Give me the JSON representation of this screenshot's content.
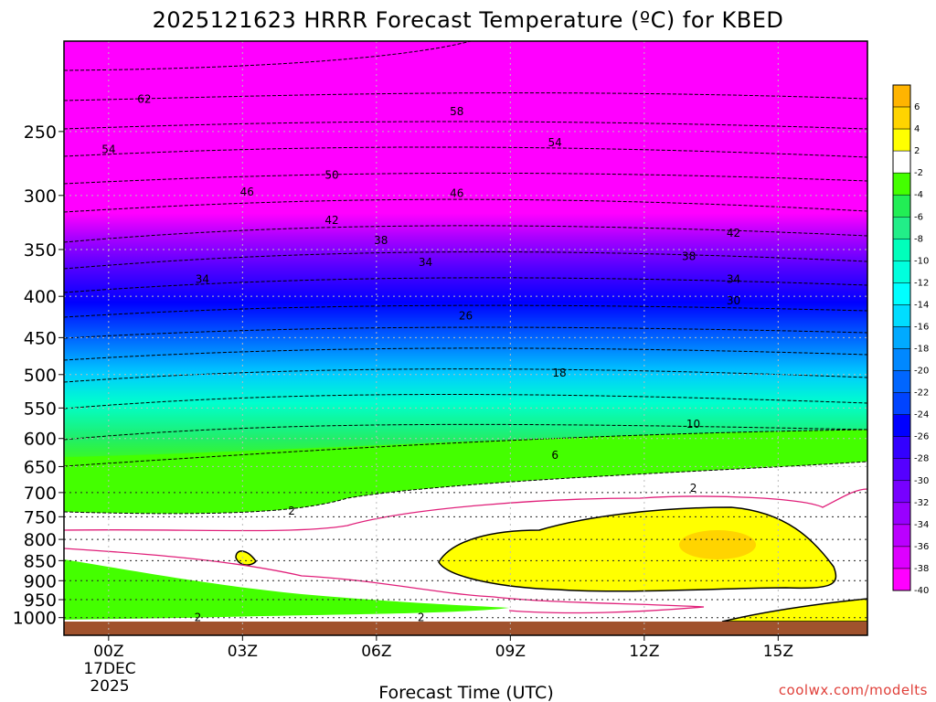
{
  "chart_data": {
    "type": "heatmap",
    "title": "2025121623 HRRR Forecast Temperature (ºC) for KBED",
    "xlabel": "Forecast Time (UTC)",
    "ylabel": "",
    "credit": "coolwx.com/modelts",
    "x_start_date": [
      "17DEC",
      "2025"
    ],
    "x_range_hours": [
      -1,
      17
    ],
    "x_ticks": [
      {
        "hour": 0,
        "label": "00Z"
      },
      {
        "hour": 3,
        "label": "03Z"
      },
      {
        "hour": 6,
        "label": "06Z"
      },
      {
        "hour": 9,
        "label": "09Z"
      },
      {
        "hour": 12,
        "label": "12Z"
      },
      {
        "hour": 15,
        "label": "15Z"
      }
    ],
    "y_ticks": [
      250,
      300,
      350,
      400,
      450,
      500,
      550,
      600,
      650,
      700,
      750,
      800,
      850,
      900,
      950,
      1000
    ],
    "y_range_hpa": [
      1030,
      200
    ],
    "grid": true,
    "colorbar": {
      "labels": [
        "6",
        "4",
        "2",
        "-2",
        "-4",
        "-6",
        "-8",
        "-10",
        "-12",
        "-14",
        "-16",
        "-18",
        "-20",
        "-22",
        "-24",
        "-26",
        "-28",
        "-30",
        "-32",
        "-34",
        "-36",
        "-38",
        "-40"
      ],
      "colors": [
        "#ffb400",
        "#ffd400",
        "#ffff00",
        "#ffffff",
        "#44ff00",
        "#22ee55",
        "#22ee88",
        "#00ffbb",
        "#00ffdd",
        "#00ffff",
        "#00ddff",
        "#00aaff",
        "#0088ff",
        "#0066ff",
        "#0044ff",
        "#0000ff",
        "#3300ff",
        "#5500ff",
        "#7700ff",
        "#9900ff",
        "#bb00ff",
        "#dd00ff",
        "#ff00ff"
      ]
    },
    "profile": [
      {
        "p": 220,
        "t": -63
      },
      {
        "p": 250,
        "t": -55
      },
      {
        "p": 300,
        "t": -46
      },
      {
        "p": 350,
        "t": -38
      },
      {
        "p": 400,
        "t": -31
      },
      {
        "p": 450,
        "t": -25
      },
      {
        "p": 500,
        "t": -20
      },
      {
        "p": 550,
        "t": -14
      },
      {
        "p": 600,
        "t": -10
      },
      {
        "p": 650,
        "t": -6
      },
      {
        "p": 700,
        "t": -2
      },
      {
        "p": 750,
        "t": 0
      },
      {
        "p": 850,
        "t": 2
      },
      {
        "p": 1000,
        "t": 1
      }
    ],
    "isotherm_labels": [
      {
        "text": "62",
        "hour": 0.8,
        "p": 228
      },
      {
        "text": "58",
        "hour": 7.8,
        "p": 236
      },
      {
        "text": "54",
        "hour": 0.0,
        "p": 263
      },
      {
        "text": "54",
        "hour": 10.0,
        "p": 258
      },
      {
        "text": "50",
        "hour": 5.0,
        "p": 283
      },
      {
        "text": "46",
        "hour": 3.1,
        "p": 297
      },
      {
        "text": "46",
        "hour": 7.8,
        "p": 298
      },
      {
        "text": "42",
        "hour": 5.0,
        "p": 322
      },
      {
        "text": "42",
        "hour": 14.0,
        "p": 334
      },
      {
        "text": "38",
        "hour": 6.1,
        "p": 341
      },
      {
        "text": "38",
        "hour": 13.0,
        "p": 357
      },
      {
        "text": "34",
        "hour": 2.1,
        "p": 381
      },
      {
        "text": "34",
        "hour": 7.1,
        "p": 363
      },
      {
        "text": "34",
        "hour": 14.0,
        "p": 381
      },
      {
        "text": "30",
        "hour": 14.0,
        "p": 405
      },
      {
        "text": "26",
        "hour": 8.0,
        "p": 423
      },
      {
        "text": "18",
        "hour": 10.1,
        "p": 498
      },
      {
        "text": "10",
        "hour": 13.1,
        "p": 576
      },
      {
        "text": "6",
        "hour": 10.0,
        "p": 629
      },
      {
        "text": "2",
        "hour": 13.1,
        "p": 691
      },
      {
        "text": "2",
        "hour": 4.1,
        "p": 738
      },
      {
        "text": "2",
        "hour": 2.0,
        "p": 1000
      },
      {
        "text": "2",
        "hour": 7.0,
        "p": 1000
      }
    ]
  }
}
